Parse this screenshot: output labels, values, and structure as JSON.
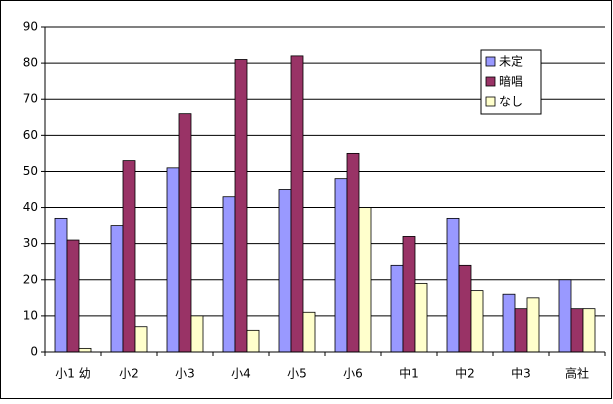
{
  "chart_data": {
    "type": "bar",
    "categories": [
      "小1 幼",
      "小2",
      "小3",
      "小4",
      "小5",
      "小6",
      "中1",
      "中2",
      "中3",
      "高社"
    ],
    "series": [
      {
        "name": "未定",
        "color": "#9999ff",
        "values": [
          37,
          35,
          51,
          43,
          45,
          48,
          24,
          37,
          16,
          20
        ]
      },
      {
        "name": "暗唱",
        "color": "#993366",
        "values": [
          31,
          53,
          66,
          81,
          82,
          55,
          32,
          24,
          12,
          12
        ]
      },
      {
        "name": "なし",
        "color": "#ffffcc",
        "values": [
          1,
          7,
          10,
          6,
          11,
          40,
          19,
          17,
          15,
          12
        ]
      }
    ],
    "ylim": [
      0,
      90
    ],
    "yticks": [
      0,
      10,
      20,
      30,
      40,
      50,
      60,
      70,
      80,
      90
    ],
    "grid": true,
    "legend": "upper-right"
  }
}
